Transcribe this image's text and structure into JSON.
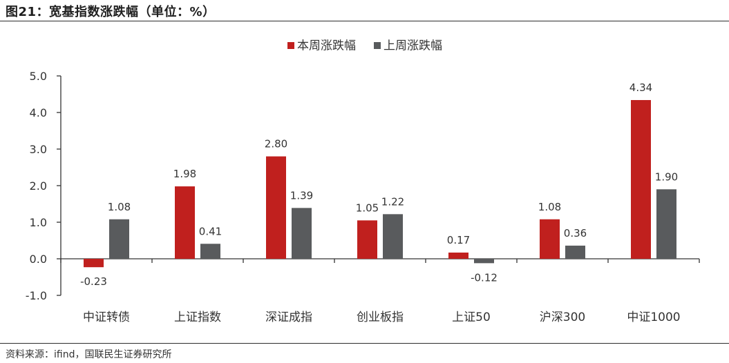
{
  "figure": {
    "title": "图21：宽基指数涨跌幅（单位：%）",
    "source": "资料来源：ifind，国联民生证券研究所"
  },
  "chart_data": {
    "type": "bar",
    "categories": [
      "中证转债",
      "上证指数",
      "深证成指",
      "创业板指",
      "上证50",
      "沪深300",
      "中证1000"
    ],
    "series": [
      {
        "name": "本周涨跌幅",
        "color": "#c0201e",
        "values": [
          -0.23,
          1.98,
          2.8,
          1.05,
          0.17,
          1.08,
          4.34
        ]
      },
      {
        "name": "上周涨跌幅",
        "color": "#595b5d",
        "values": [
          1.08,
          0.41,
          1.39,
          1.22,
          -0.12,
          0.36,
          1.9
        ]
      }
    ],
    "ylim": [
      -1.0,
      5.0
    ],
    "yticks": [
      "5.0",
      "4.0",
      "3.0",
      "2.0",
      "1.0",
      "0.0",
      "-1.0"
    ],
    "ytick_values": [
      5,
      4,
      3,
      2,
      1,
      0,
      -1
    ],
    "legend_position": "top-center",
    "grid": false,
    "xlabel": "",
    "ylabel": ""
  }
}
